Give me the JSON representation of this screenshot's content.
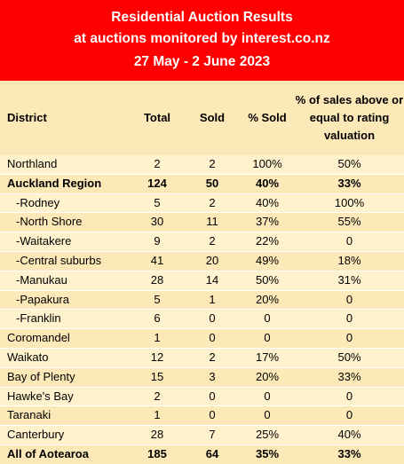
{
  "title": {
    "line1": "Residential Auction Results",
    "line2": "at auctions monitored by interest.co.nz",
    "line3": "27 May - 2 June 2023"
  },
  "headers": {
    "district": "District",
    "total": "Total",
    "sold": "Sold",
    "pct_sold": "% Sold",
    "above": "% of sales above or equal to rating valuation"
  },
  "rows": [
    {
      "district": "Northland",
      "total": "2",
      "sold": "2",
      "pct_sold": "100%",
      "above": "50%"
    },
    {
      "district": "Auckland Region",
      "total": "124",
      "sold": "50",
      "pct_sold": "40%",
      "above": "33%"
    },
    {
      "district": "-Rodney",
      "total": "5",
      "sold": "2",
      "pct_sold": "40%",
      "above": "100%"
    },
    {
      "district": "-North Shore",
      "total": "30",
      "sold": "11",
      "pct_sold": "37%",
      "above": "55%"
    },
    {
      "district": "-Waitakere",
      "total": "9",
      "sold": "2",
      "pct_sold": "22%",
      "above": "0"
    },
    {
      "district": "-Central suburbs",
      "total": "41",
      "sold": "20",
      "pct_sold": "49%",
      "above": "18%"
    },
    {
      "district": "-Manukau",
      "total": "28",
      "sold": "14",
      "pct_sold": "50%",
      "above": "31%"
    },
    {
      "district": "-Papakura",
      "total": "5",
      "sold": "1",
      "pct_sold": "20%",
      "above": "0"
    },
    {
      "district": "-Franklin",
      "total": "6",
      "sold": "0",
      "pct_sold": "0",
      "above": "0"
    },
    {
      "district": "Coromandel",
      "total": "1",
      "sold": "0",
      "pct_sold": "0",
      "above": "0"
    },
    {
      "district": "Waikato",
      "total": "12",
      "sold": "2",
      "pct_sold": "17%",
      "above": "50%"
    },
    {
      "district": "Bay of Plenty",
      "total": "15",
      "sold": "3",
      "pct_sold": "20%",
      "above": "33%"
    },
    {
      "district": "Hawke's Bay",
      "total": "2",
      "sold": "0",
      "pct_sold": "0",
      "above": "0"
    },
    {
      "district": "Taranaki",
      "total": "1",
      "sold": "0",
      "pct_sold": "0",
      "above": "0"
    },
    {
      "district": "Canterbury",
      "total": "28",
      "sold": "7",
      "pct_sold": "25%",
      "above": "40%"
    },
    {
      "district": "All of Aotearoa",
      "total": "185",
      "sold": "64",
      "pct_sold": "35%",
      "above": "33%"
    }
  ],
  "colors": {
    "banner": "#ff0000",
    "header_bg": "#fde9b8",
    "row_light": "#fff2cc",
    "row_dark": "#fde9b8"
  }
}
